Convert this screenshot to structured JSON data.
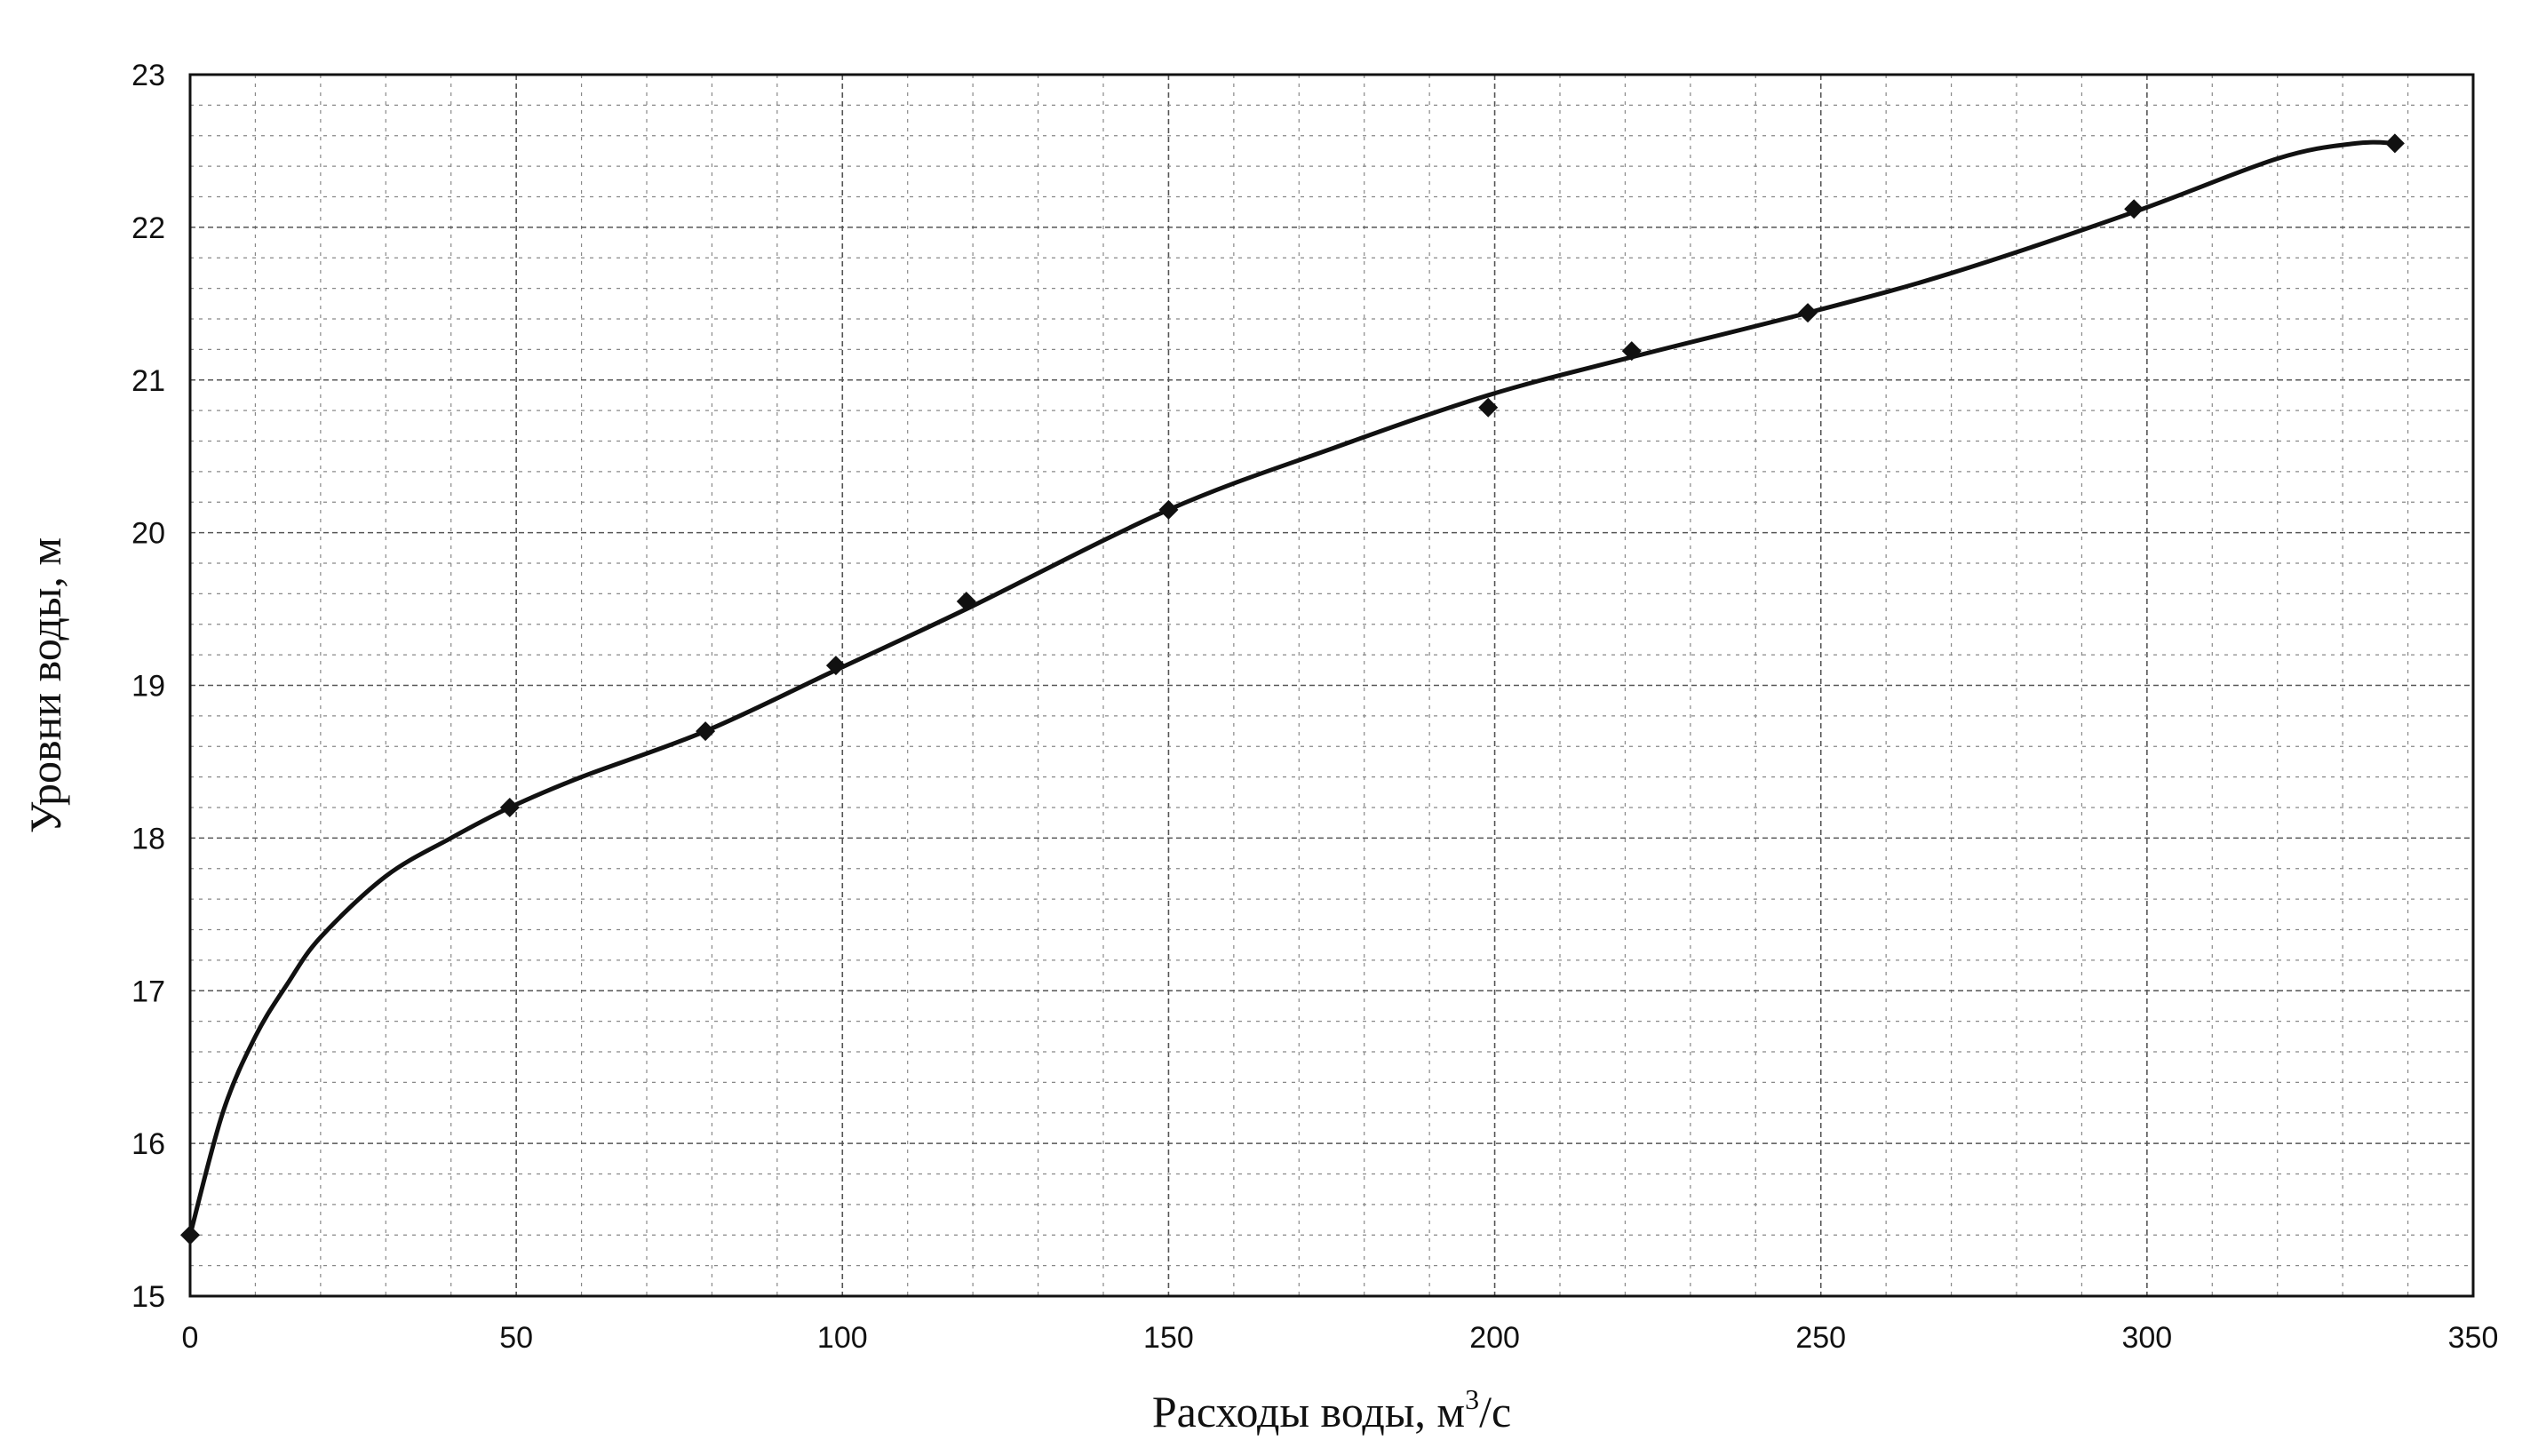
{
  "chart_data": {
    "type": "line",
    "title": "",
    "xlabel": "Расходы воды, м",
    "xlabel_sup": "3",
    "xlabel_tail": "/с",
    "ylabel": "Уровни воды, м",
    "xlim": [
      0,
      350
    ],
    "ylim": [
      15,
      23
    ],
    "xticks": [
      "0",
      "50",
      "100",
      "150",
      "200",
      "250",
      "300",
      "350"
    ],
    "yticks": [
      "15",
      "16",
      "17",
      "18",
      "19",
      "20",
      "21",
      "22",
      "23"
    ],
    "grid": true,
    "markers": "diamond",
    "series": [
      {
        "points": [
          {
            "x": 0,
            "y": 15.4
          },
          {
            "x": 49,
            "y": 18.2
          },
          {
            "x": 79,
            "y": 18.7
          },
          {
            "x": 99,
            "y": 19.13
          },
          {
            "x": 119,
            "y": 19.55
          },
          {
            "x": 150,
            "y": 20.15
          },
          {
            "x": 199,
            "y": 20.82
          },
          {
            "x": 221,
            "y": 21.19
          },
          {
            "x": 248,
            "y": 21.44
          },
          {
            "x": 298,
            "y": 22.12
          },
          {
            "x": 338,
            "y": 22.55
          }
        ],
        "curve": [
          [
            0,
            15.4
          ],
          [
            5,
            16.2
          ],
          [
            10,
            16.7
          ],
          [
            15,
            17.05
          ],
          [
            20,
            17.35
          ],
          [
            30,
            17.75
          ],
          [
            40,
            18.0
          ],
          [
            49,
            18.2
          ],
          [
            60,
            18.4
          ],
          [
            79,
            18.7
          ],
          [
            99,
            19.1
          ],
          [
            119,
            19.5
          ],
          [
            150,
            20.15
          ],
          [
            175,
            20.55
          ],
          [
            199,
            20.9
          ],
          [
            221,
            21.15
          ],
          [
            248,
            21.44
          ],
          [
            270,
            21.7
          ],
          [
            298,
            22.1
          ],
          [
            320,
            22.45
          ],
          [
            332,
            22.55
          ],
          [
            338,
            22.55
          ]
        ]
      }
    ]
  }
}
